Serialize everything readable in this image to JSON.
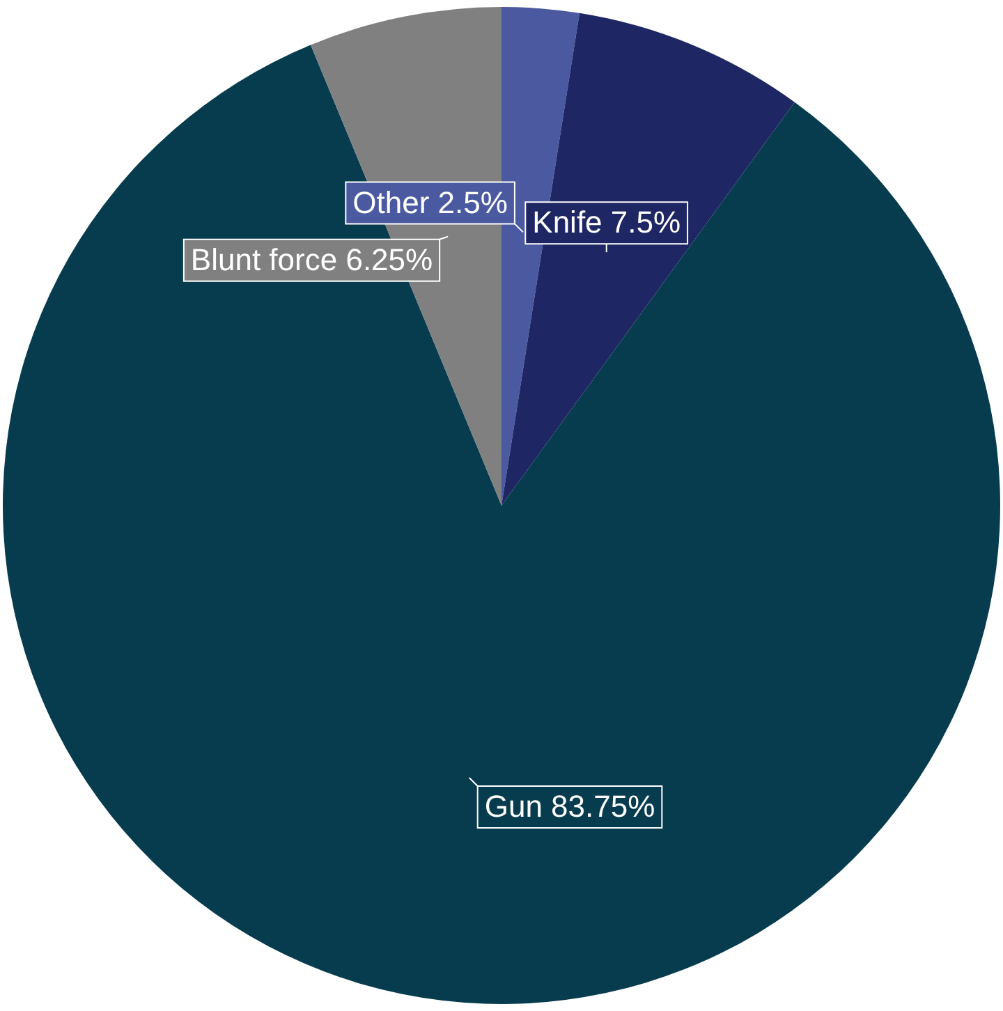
{
  "chart_data": {
    "type": "pie",
    "categories": [
      "Other",
      "Knife",
      "Gun",
      "Blunt force"
    ],
    "values": [
      2.5,
      7.5,
      83.75,
      6.25
    ],
    "colors": [
      "#4b5aa0",
      "#1e2663",
      "#063c4e",
      "#808080"
    ],
    "value_labels": [
      "2.5%",
      "7.5%",
      "83.75%",
      "6.25%"
    ],
    "legend": false
  }
}
